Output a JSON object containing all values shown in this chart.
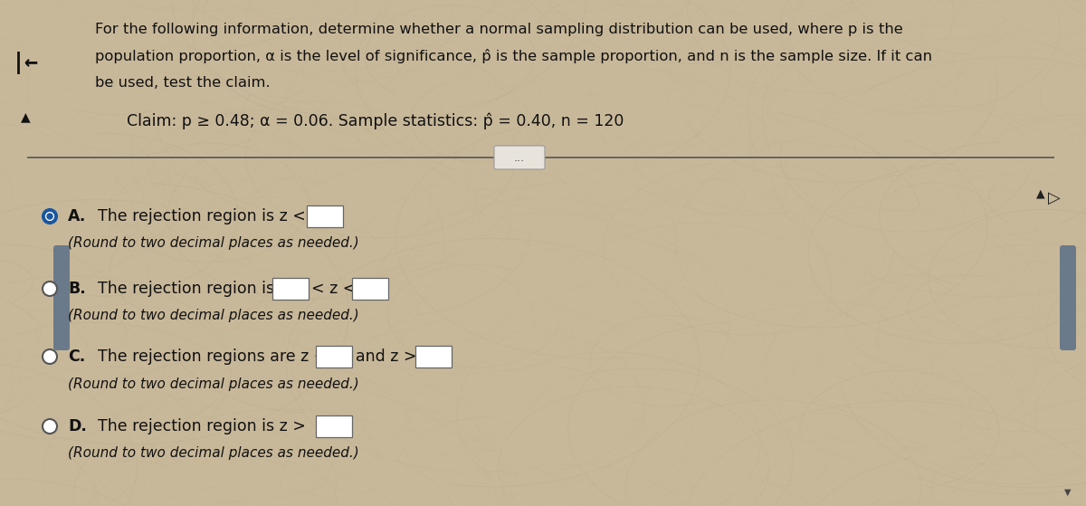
{
  "bg_color": "#c8b89a",
  "text_color": "#1a1a1a",
  "line1": "For the following information, determine whether a normal sampling distribution can be used, where p is the",
  "line2": "population proportion, α is the level of significance, p̂ is the sample proportion, and n is the sample size. If it can",
  "line3": "be used, test the claim.",
  "claim_line": "Claim: p ≥ 0.48; α = 0.06. Sample statistics: p̂ = 0.40, n = 120",
  "option_A_label": "A.",
  "option_A_text": "The rejection region is z <",
  "option_A_sub": "(Round to two decimal places as needed.)",
  "option_B_label": "B.",
  "option_B_text1": "The rejection region is",
  "option_B_text2": "< z <",
  "option_B_sub": "(Round to two decimal places as needed.)",
  "option_C_label": "C.",
  "option_C_text": "The rejection regions are z <",
  "option_C_text2": "and z >",
  "option_C_sub": "(Round to two decimal places as needed.)",
  "option_D_label": "D.",
  "option_D_text": "The rejection region is z >",
  "option_D_sub": "(Round to two decimal places as needed.)",
  "selected": "A",
  "back_arrow": "|←",
  "up_arrow": "▲",
  "dots_button": "...",
  "cursor_up": "▲",
  "figwidth": 12.0,
  "figheight": 5.59
}
